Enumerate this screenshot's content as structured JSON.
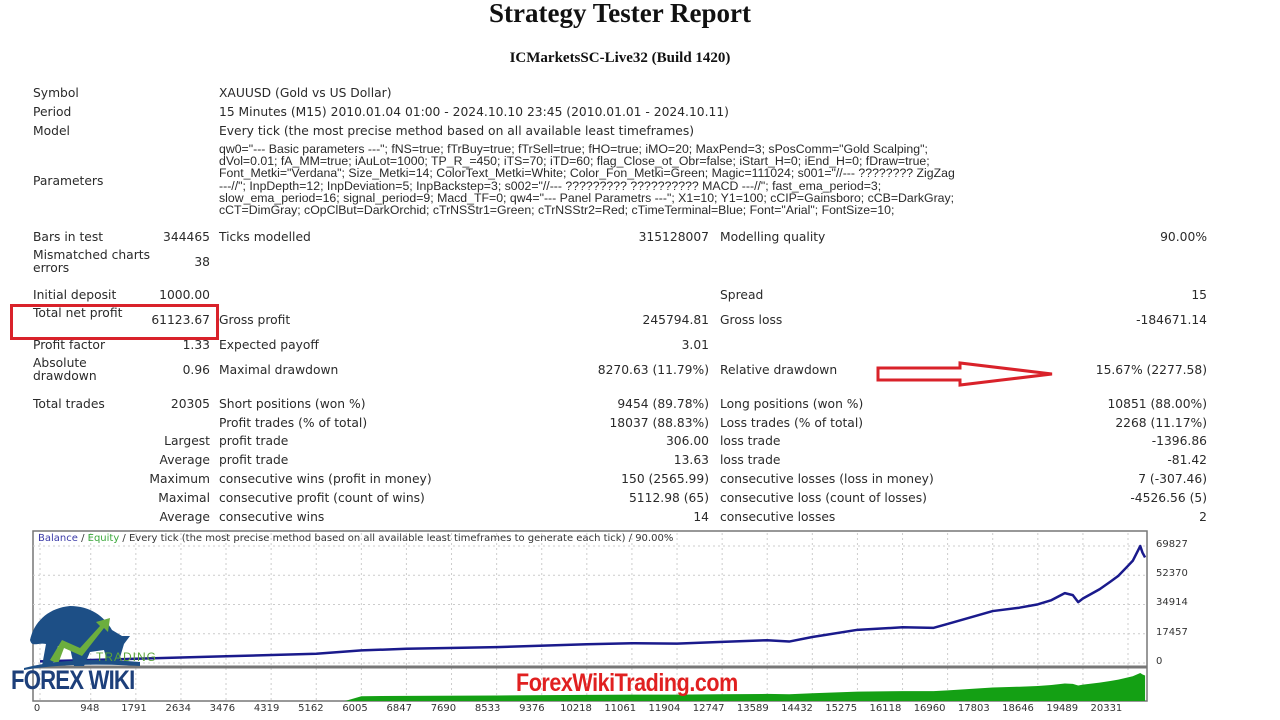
{
  "header": {
    "title": "Strategy Tester Report",
    "broker": "ICMarketsSC-Live32 (Build 1420)"
  },
  "info": [
    {
      "label": "Symbol",
      "value": "XAUUSD (Gold vs US Dollar)"
    },
    {
      "label": "Period",
      "value": "15 Minutes (M15) 2010.01.04 01:00 - 2024.10.10 23:45 (2010.01.01 - 2024.10.11)"
    },
    {
      "label": "Model",
      "value": "Every tick (the most precise method based on all available least timeframes)"
    },
    {
      "label": "Parameters",
      "value": "qw0=\"--- Basic parameters ---\"; fNS=true; fTrBuy=true; fTrSell=true; fHO=true; iMO=20; MaxPend=3; sPosComm=\"Gold Scalping\";\ndVol=0.01; fA_MM=true; iAuLot=1000; TP_R_=450; iTS=70; iTD=60; flag_Close_ot_Obr=false; iStart_H=0; iEnd_H=0; fDraw=true;\nFont_Metki=\"Verdana\"; Size_Metki=14; ColorText_Metki=White; Color_Fon_Metki=Green; Magic=111024; s001=\"//--- ???????? ZigZag\n---//\"; InpDepth=12; InpDeviation=5; InpBackstep=3; s002=\"//--- ????????? ?????????? MACD ---//\"; fast_ema_period=3;\nslow_ema_period=16; signal_period=9; Macd_TF=0; qw4=\"--- Panel Parametrs ---\"; X1=10; Y1=100; cCIP=Gainsboro; cCB=DarkGray;\ncCT=DimGray; cOpClBut=DarkOrchid; cTrNSStr1=Green; cTrNSStr2=Red; cTimeTerminal=Blue; Font=\"Arial\"; FontSize=10;"
    }
  ],
  "stats": [
    [
      "Bars in test",
      "344465",
      "Ticks modelled",
      "315128007",
      "Modelling quality",
      "90.00%"
    ],
    [
      "Mismatched charts errors",
      "38",
      "",
      "",
      "",
      ""
    ],
    [
      "Initial deposit",
      "1000.00",
      "",
      "",
      "Spread",
      "15"
    ],
    [
      "Total net profit",
      "61123.67",
      "Gross profit",
      "245794.81",
      "Gross loss",
      "-184671.14"
    ],
    [
      "Profit factor",
      "1.33",
      "Expected payoff",
      "3.01",
      "",
      ""
    ],
    [
      "Absolute drawdown",
      "0.96",
      "Maximal drawdown",
      "8270.63 (11.79%)",
      "Relative drawdown",
      "15.67% (2277.58)"
    ],
    [
      "Total trades",
      "20305",
      "Short positions (won %)",
      "9454 (89.78%)",
      "Long positions (won %)",
      "10851 (88.00%)"
    ],
    [
      "",
      "",
      "Profit trades (% of total)",
      "18037 (88.83%)",
      "Loss trades (% of total)",
      "2268 (11.17%)"
    ],
    [
      "",
      "Largest",
      "profit trade",
      "306.00",
      "loss trade",
      "-1396.86"
    ],
    [
      "",
      "Average",
      "profit trade",
      "13.63",
      "loss trade",
      "-81.42"
    ],
    [
      "",
      "Maximum",
      "consecutive wins (profit in money)",
      "150 (2565.99)",
      "consecutive losses (loss in money)",
      "7 (-307.46)"
    ],
    [
      "",
      "Maximal",
      "consecutive profit (count of wins)",
      "5112.98 (65)",
      "consecutive loss (count of losses)",
      "-4526.56 (5)"
    ],
    [
      "",
      "Average",
      "consecutive wins",
      "14",
      "consecutive losses",
      "2"
    ]
  ],
  "highlight_color": "#d9222a",
  "chart_data": {
    "type": "line",
    "legend": {
      "balance": "Balance",
      "sep1": " / ",
      "equity": "Equity",
      "rest": " / Every tick (the most precise method based on all available least timeframes to generate each tick) / 90.00%"
    },
    "colors": {
      "balance": "#1a1a8c",
      "equity": "#14a014"
    },
    "xticks": [
      0,
      948,
      1791,
      2634,
      3476,
      4319,
      5162,
      6005,
      6847,
      7690,
      8533,
      9376,
      10218,
      11061,
      11904,
      12747,
      13589,
      14432,
      15275,
      16118,
      16960,
      17803,
      18646,
      19489,
      20331
    ],
    "yticks": [
      0,
      17457,
      34914,
      52370,
      69827
    ],
    "xlim": [
      0,
      20305
    ],
    "ylim": [
      0,
      69827
    ],
    "grid": true,
    "balance": [
      [
        0,
        1000
      ],
      [
        1791,
        2500
      ],
      [
        3476,
        4000
      ],
      [
        5162,
        5500
      ],
      [
        6005,
        7500
      ],
      [
        6847,
        8500
      ],
      [
        8533,
        9500
      ],
      [
        10218,
        11200
      ],
      [
        11061,
        11800
      ],
      [
        11904,
        11600
      ],
      [
        12747,
        12600
      ],
      [
        13589,
        13600
      ],
      [
        14000,
        12800
      ],
      [
        14432,
        15500
      ],
      [
        15275,
        19800
      ],
      [
        16118,
        21300
      ],
      [
        16700,
        21000
      ],
      [
        16960,
        23300
      ],
      [
        17803,
        31000
      ],
      [
        18300,
        33000
      ],
      [
        18646,
        35000
      ],
      [
        18900,
        37500
      ],
      [
        19150,
        41700
      ],
      [
        19300,
        40500
      ],
      [
        19400,
        36300
      ],
      [
        19489,
        38500
      ],
      [
        19800,
        44000
      ],
      [
        20000,
        48500
      ],
      [
        20150,
        52000
      ],
      [
        20331,
        58000
      ],
      [
        20420,
        61000
      ],
      [
        20560,
        69800
      ],
      [
        20600,
        66000
      ],
      [
        20650,
        63000
      ]
    ]
  },
  "watermark": "ForexWikiTrading.com",
  "logo": {
    "name": "FOREX WIKI",
    "tagline": "TRADING"
  }
}
